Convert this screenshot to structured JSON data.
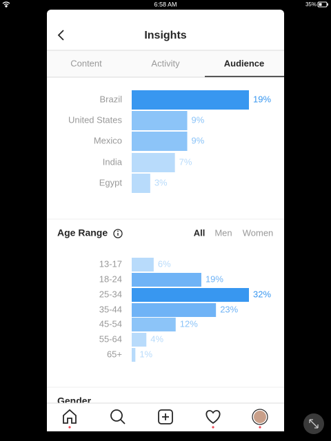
{
  "status_bar": {
    "time": "6:58 AM",
    "battery": "35%"
  },
  "header": {
    "title": "Insights"
  },
  "tabs": [
    "Content",
    "Activity",
    "Audience"
  ],
  "active_tab": 2,
  "chart_data": [
    {
      "type": "bar",
      "orientation": "horizontal",
      "categories": [
        "Brazil",
        "United States",
        "Mexico",
        "India",
        "Egypt"
      ],
      "values": [
        19,
        9,
        9,
        7,
        3
      ],
      "value_labels": [
        "19%",
        "9%",
        "9%",
        "7%",
        "3%"
      ],
      "colors": [
        "#3897f0",
        "#8cc4f8",
        "#8cc4f8",
        "#b8dbfb",
        "#b8dbfb"
      ]
    },
    {
      "type": "bar",
      "orientation": "horizontal",
      "title": "Age Range",
      "filters": [
        "All",
        "Men",
        "Women"
      ],
      "active_filter": 0,
      "categories": [
        "13-17",
        "18-24",
        "25-34",
        "35-44",
        "45-54",
        "55-64",
        "65+"
      ],
      "values": [
        6,
        19,
        32,
        23,
        12,
        4,
        1
      ],
      "value_labels": [
        "6%",
        "19%",
        "32%",
        "23%",
        "12%",
        "4%",
        "1%"
      ],
      "colors": [
        "#b8dbfb",
        "#6fb3f6",
        "#3897f0",
        "#6fb3f6",
        "#8cc4f8",
        "#b8dbfb",
        "#b8dbfb"
      ]
    }
  ],
  "next_section": "Gender"
}
